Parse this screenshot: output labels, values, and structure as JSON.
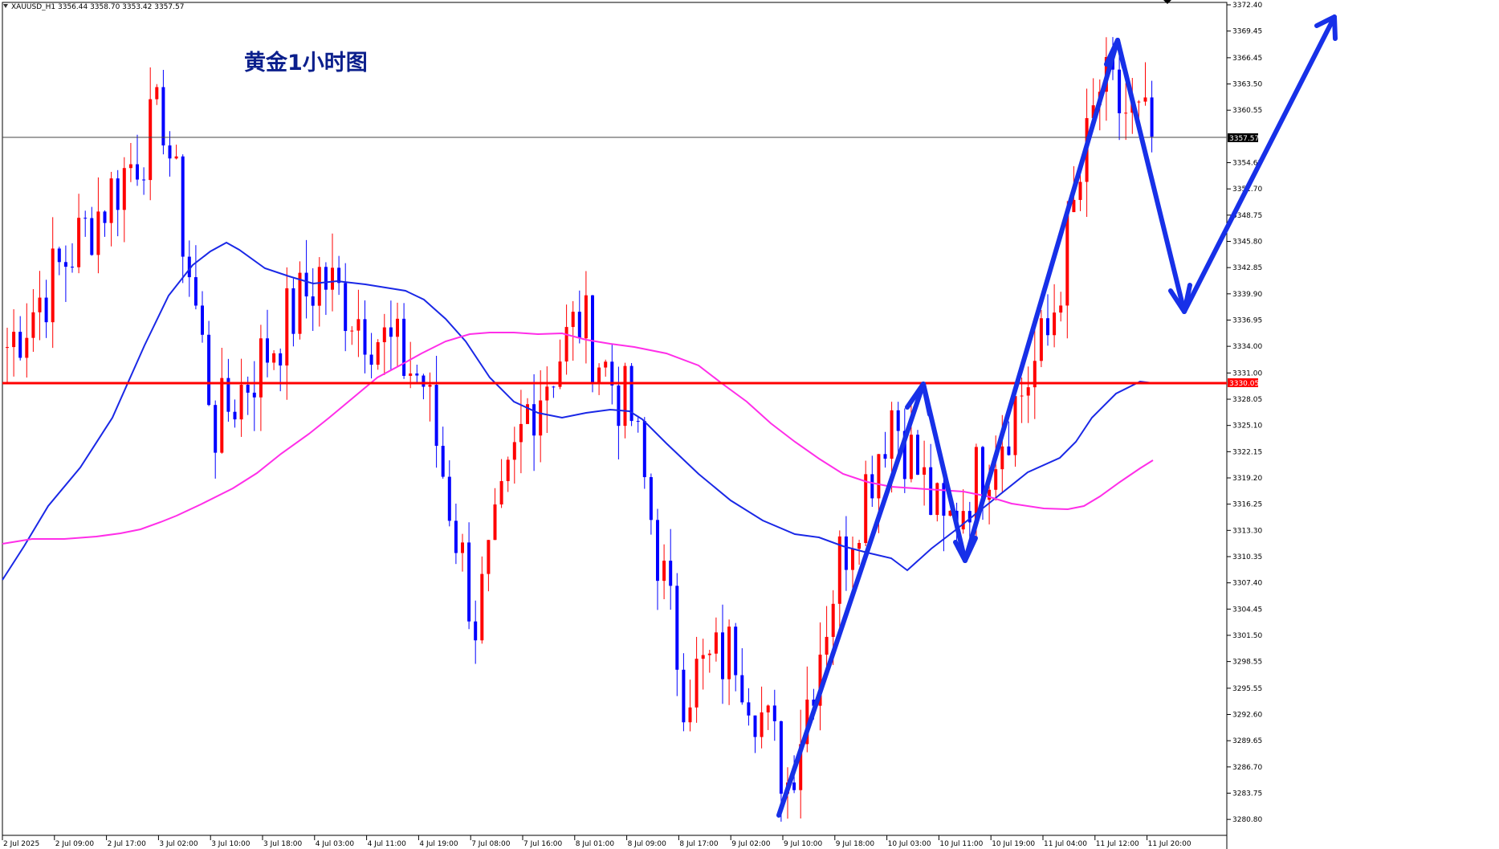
{
  "window": {
    "symbol_info": "XAUUSD_H1  3356.44 3358.70 3353.42 3357.57"
  },
  "chart_title": "黄金1小时图",
  "colors": {
    "bull": "#ff0000",
    "bear": "#0000ff",
    "ma_fast": "#1a28e6",
    "ma_slow": "#ff2ee8",
    "support_line": "#ff0000",
    "current_price_line": "#000000",
    "annotation": "#1730e8",
    "grid_frame": "#000000"
  },
  "chart_data": {
    "type": "candlestick",
    "title": "黄金1小时图",
    "symbol": "XAUUSD",
    "timeframe": "H1",
    "ylim": [
      3280.0,
      3372.4
    ],
    "y_ticks": [
      "3372.40",
      "3369.45",
      "3366.45",
      "3363.50",
      "3360.55",
      "3357.57",
      "3354.65",
      "3351.70",
      "3348.75",
      "3345.80",
      "3342.85",
      "3339.90",
      "3336.95",
      "3334.00",
      "3331.00",
      "3330.05",
      "3328.05",
      "3325.10",
      "3322.15",
      "3319.20",
      "3316.25",
      "3313.30",
      "3310.35",
      "3307.40",
      "3304.45",
      "3301.50",
      "3298.55",
      "3295.55",
      "3292.60",
      "3289.65",
      "3286.70",
      "3283.75",
      "3280.80"
    ],
    "x_ticks": [
      "2 Jul 2025",
      "2 Jul 09:00",
      "2 Jul 17:00",
      "3 Jul 02:00",
      "3 Jul 10:00",
      "3 Jul 18:00",
      "4 Jul 03:00",
      "4 Jul 11:00",
      "4 Jul 19:00",
      "7 Jul 08:00",
      "7 Jul 16:00",
      "8 Jul 01:00",
      "8 Jul 09:00",
      "8 Jul 17:00",
      "9 Jul 02:00",
      "9 Jul 10:00",
      "9 Jul 18:00",
      "10 Jul 03:00",
      "10 Jul 11:00",
      "10 Jul 19:00",
      "11 Jul 04:00",
      "11 Jul 12:00",
      "11 Jul 20:00"
    ],
    "current_price": 3357.57,
    "support_level": 3330.05,
    "ohlc_key_points": [
      [
        "2 Jul 2025",
        3334
      ],
      [
        "3 Jul 02:00",
        3360
      ],
      [
        "3 Jul 10:00",
        3325
      ],
      [
        "4 Jul 03:00",
        3342
      ],
      [
        "4 Jul 19:00",
        3330
      ],
      [
        "7 Jul 08:00",
        3303
      ],
      [
        "7 Jul 16:00",
        3327
      ],
      [
        "8 Jul 01:00",
        3337
      ],
      [
        "8 Jul 09:00",
        3326
      ],
      [
        "8 Jul 17:00",
        3296
      ],
      [
        "9 Jul 02:00",
        3300
      ],
      [
        "9 Jul 10:00",
        3285
      ],
      [
        "9 Jul 18:00",
        3310
      ],
      [
        "10 Jul 03:00",
        3327
      ],
      [
        "10 Jul 11:00",
        3313
      ],
      [
        "10 Jul 19:00",
        3323
      ],
      [
        "11 Jul 04:00",
        3335
      ],
      [
        "11 Jul 12:00",
        3363
      ],
      [
        "11 Jul 20:00",
        3357.57
      ]
    ]
  }
}
